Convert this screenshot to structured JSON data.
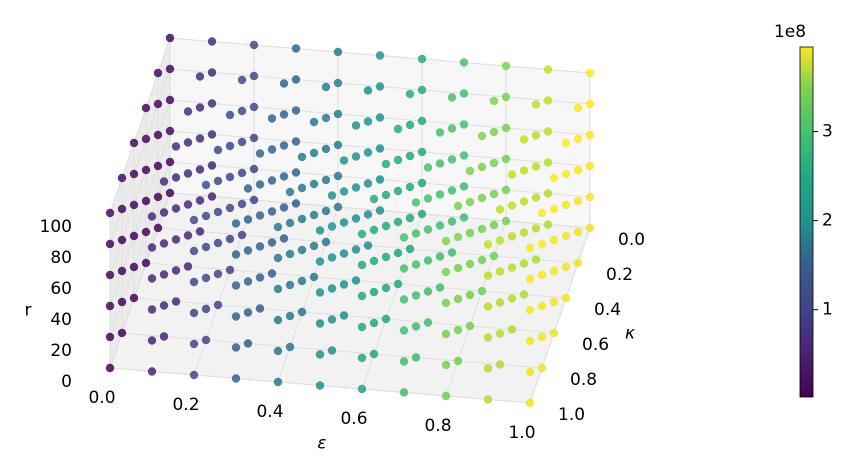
{
  "chart_data": {
    "type": "scatter3d",
    "xlabel": "ε",
    "ylabel": "κ",
    "zlabel": "r",
    "x": [
      0,
      0.1,
      0.2,
      0.3,
      0.4,
      0.5,
      0.6,
      0.7,
      0.8,
      0.9,
      1.0
    ],
    "y": [
      0,
      0.2,
      0.4,
      0.6,
      0.8,
      1.0
    ],
    "z": [
      0,
      20,
      40,
      60,
      80,
      100
    ],
    "xlim": [
      0,
      1
    ],
    "ylim": [
      0,
      1
    ],
    "zlim": [
      0,
      100
    ],
    "xticks": [
      {
        "value": 0,
        "label": "0.0"
      },
      {
        "value": 0.2,
        "label": "0.2"
      },
      {
        "value": 0.4,
        "label": "0.4"
      },
      {
        "value": 0.6,
        "label": "0.6"
      },
      {
        "value": 0.8,
        "label": "0.8"
      },
      {
        "value": 1,
        "label": "1.0"
      }
    ],
    "yticks": [
      {
        "value": 0,
        "label": "0.0"
      },
      {
        "value": 0.2,
        "label": "0.2"
      },
      {
        "value": 0.4,
        "label": "0.4"
      },
      {
        "value": 0.6,
        "label": "0.6"
      },
      {
        "value": 0.8,
        "label": "0.8"
      },
      {
        "value": 1,
        "label": "1.0"
      }
    ],
    "zticks": [
      0,
      20,
      40,
      60,
      80,
      100
    ],
    "values": [
      [
        [
          0.05,
          0.07,
          0.09,
          0.11,
          0.13,
          0.15
        ],
        [
          0.05,
          0.07,
          0.09,
          0.11,
          0.13,
          0.15
        ],
        [
          0.05,
          0.07,
          0.09,
          0.11,
          0.13,
          0.15
        ],
        [
          0.05,
          0.07,
          0.09,
          0.11,
          0.13,
          0.15
        ],
        [
          0.05,
          0.07,
          0.09,
          0.11,
          0.13,
          0.15
        ],
        [
          0.05,
          0.07,
          0.09,
          0.11,
          0.13,
          0.15
        ]
      ],
      [
        [
          0.43,
          0.45,
          0.47,
          0.49,
          0.51,
          0.53
        ],
        [
          0.43,
          0.45,
          0.47,
          0.49,
          0.51,
          0.53
        ],
        [
          0.43,
          0.45,
          0.47,
          0.49,
          0.51,
          0.53
        ],
        [
          0.43,
          0.45,
          0.47,
          0.49,
          0.51,
          0.53
        ],
        [
          0.43,
          0.45,
          0.47,
          0.49,
          0.51,
          0.53
        ],
        [
          0.43,
          0.45,
          0.47,
          0.49,
          0.51,
          0.53
        ]
      ],
      [
        [
          0.81,
          0.83,
          0.85,
          0.87,
          0.89,
          0.91
        ],
        [
          0.81,
          0.83,
          0.85,
          0.87,
          0.89,
          0.91
        ],
        [
          0.81,
          0.83,
          0.85,
          0.87,
          0.89,
          0.91
        ],
        [
          0.81,
          0.83,
          0.85,
          0.87,
          0.89,
          0.91
        ],
        [
          0.81,
          0.83,
          0.85,
          0.87,
          0.89,
          0.91
        ],
        [
          0.81,
          0.83,
          0.85,
          0.87,
          0.89,
          0.91
        ]
      ],
      [
        [
          1.19,
          1.21,
          1.23,
          1.25,
          1.27,
          1.29
        ],
        [
          1.19,
          1.21,
          1.23,
          1.25,
          1.27,
          1.29
        ],
        [
          1.19,
          1.21,
          1.23,
          1.25,
          1.27,
          1.29
        ],
        [
          1.19,
          1.21,
          1.23,
          1.25,
          1.27,
          1.29
        ],
        [
          1.19,
          1.21,
          1.23,
          1.25,
          1.27,
          1.29
        ],
        [
          1.19,
          1.21,
          1.23,
          1.25,
          1.27,
          1.29
        ]
      ],
      [
        [
          1.57,
          1.59,
          1.61,
          1.63,
          1.65,
          1.67
        ],
        [
          1.57,
          1.59,
          1.61,
          1.63,
          1.65,
          1.67
        ],
        [
          1.57,
          1.59,
          1.61,
          1.63,
          1.65,
          1.67
        ],
        [
          1.57,
          1.59,
          1.61,
          1.63,
          1.65,
          1.67
        ],
        [
          1.57,
          1.59,
          1.61,
          1.63,
          1.65,
          1.67
        ],
        [
          1.57,
          1.59,
          1.61,
          1.63,
          1.65,
          1.67
        ]
      ],
      [
        [
          1.95,
          1.97,
          1.99,
          2.01,
          2.03,
          2.05
        ],
        [
          1.95,
          1.97,
          1.99,
          2.01,
          2.03,
          2.05
        ],
        [
          1.95,
          1.97,
          1.99,
          2.01,
          2.03,
          2.05
        ],
        [
          1.95,
          1.97,
          1.99,
          2.01,
          2.03,
          2.05
        ],
        [
          1.95,
          1.97,
          1.99,
          2.01,
          2.03,
          2.05
        ],
        [
          1.95,
          1.97,
          1.99,
          2.01,
          2.03,
          2.05
        ]
      ],
      [
        [
          2.33,
          2.35,
          2.37,
          2.39,
          2.41,
          2.43
        ],
        [
          2.33,
          2.35,
          2.37,
          2.39,
          2.41,
          2.43
        ],
        [
          2.33,
          2.35,
          2.37,
          2.39,
          2.41,
          2.43
        ],
        [
          2.33,
          2.35,
          2.37,
          2.39,
          2.41,
          2.43
        ],
        [
          2.33,
          2.35,
          2.37,
          2.39,
          2.41,
          2.43
        ],
        [
          2.33,
          2.35,
          2.37,
          2.39,
          2.41,
          2.43
        ]
      ],
      [
        [
          2.71,
          2.73,
          2.75,
          2.77,
          2.79,
          2.81
        ],
        [
          2.71,
          2.73,
          2.75,
          2.77,
          2.79,
          2.81
        ],
        [
          2.71,
          2.73,
          2.75,
          2.77,
          2.79,
          2.81
        ],
        [
          2.71,
          2.73,
          2.75,
          2.77,
          2.79,
          2.81
        ],
        [
          2.71,
          2.73,
          2.75,
          2.77,
          2.79,
          2.81
        ],
        [
          2.71,
          2.73,
          2.75,
          2.77,
          2.79,
          2.81
        ]
      ],
      [
        [
          3.09,
          3.11,
          3.13,
          3.15,
          3.17,
          3.19
        ],
        [
          3.09,
          3.11,
          3.13,
          3.15,
          3.17,
          3.19
        ],
        [
          3.09,
          3.11,
          3.13,
          3.15,
          3.17,
          3.19
        ],
        [
          3.09,
          3.11,
          3.13,
          3.15,
          3.17,
          3.19
        ],
        [
          3.09,
          3.11,
          3.13,
          3.15,
          3.17,
          3.19
        ],
        [
          3.09,
          3.11,
          3.13,
          3.15,
          3.17,
          3.19
        ]
      ],
      [
        [
          3.47,
          3.49,
          3.51,
          3.53,
          3.55,
          3.57
        ],
        [
          3.47,
          3.49,
          3.51,
          3.53,
          3.55,
          3.57
        ],
        [
          3.47,
          3.49,
          3.51,
          3.53,
          3.55,
          3.57
        ],
        [
          3.47,
          3.49,
          3.51,
          3.53,
          3.55,
          3.57
        ],
        [
          3.47,
          3.49,
          3.51,
          3.53,
          3.55,
          3.57
        ],
        [
          3.47,
          3.49,
          3.51,
          3.53,
          3.55,
          3.57
        ]
      ],
      [
        [
          3.85,
          3.87,
          3.89,
          3.91,
          3.93,
          3.95
        ],
        [
          3.85,
          3.87,
          3.89,
          3.91,
          3.93,
          3.95
        ],
        [
          3.85,
          3.87,
          3.89,
          3.91,
          3.93,
          3.95
        ],
        [
          3.85,
          3.87,
          3.89,
          3.91,
          3.93,
          3.95
        ],
        [
          3.85,
          3.87,
          3.89,
          3.91,
          3.93,
          3.95
        ],
        [
          3.85,
          3.87,
          3.89,
          3.91,
          3.93,
          3.95
        ]
      ]
    ],
    "colormap": "viridis",
    "clim": [
      0.02,
      3.95
    ],
    "colorbar_ticks": [
      1,
      2,
      3
    ],
    "colorbar_offset": "1e8"
  }
}
